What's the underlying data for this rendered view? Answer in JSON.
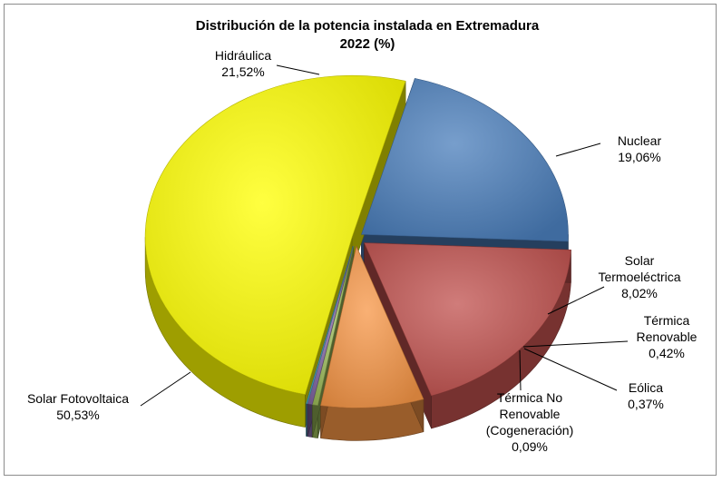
{
  "chart_data": {
    "type": "pie",
    "title": "Distribución de la potencia instalada en Extremadura",
    "subtitle": "2022 (%)",
    "categories": [
      "Hidráulica",
      "Nuclear",
      "Solar Termoeléctrica",
      "Térmica Renovable",
      "Eólica",
      "Térmica No Renovable (Cogeneración)",
      "Solar Fotovoltaica"
    ],
    "values": [
      21.52,
      19.06,
      8.02,
      0.42,
      0.37,
      0.09,
      50.53
    ],
    "value_labels": [
      "21,52%",
      "19,06%",
      "8,02%",
      "0,42%",
      "0,37%",
      "0,09%",
      "50,53%"
    ],
    "label_lines": [
      [
        "Hidráulica"
      ],
      [
        "Nuclear"
      ],
      [
        "Solar",
        "Termoeléctrica"
      ],
      [
        "Térmica",
        "Renovable"
      ],
      [
        "Eólica"
      ],
      [
        "Térmica No",
        "Renovable",
        "(Cogeneración)"
      ],
      [
        "Solar Fotovoltaica"
      ]
    ],
    "colors": [
      "#4a7ebb",
      "#c0504d",
      "#f79646",
      "#9bbb59",
      "#8064a2",
      "#4bacc6",
      "#ffff00"
    ],
    "exploded": true,
    "style_3d": true
  }
}
